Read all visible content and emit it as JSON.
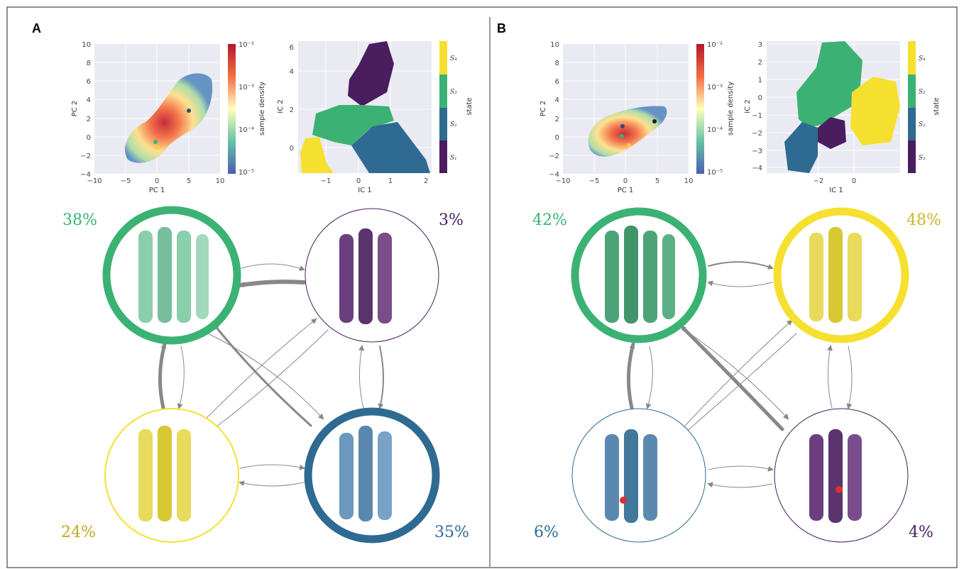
{
  "panels": [
    {
      "letter": "A",
      "pca": {
        "xlabel": "PC 1",
        "ylabel": "PC 2",
        "xticks": [
          "−10",
          "−5",
          "0",
          "5",
          "10"
        ],
        "yticks": [
          "−4",
          "−2",
          "0",
          "2",
          "4",
          "6",
          "8",
          "10"
        ],
        "colorbar_label": "sample density",
        "colorbar_ticks": [
          "10⁻²",
          "10⁻³",
          "10⁻⁴",
          "10⁻⁵"
        ]
      },
      "ica": {
        "xlabel": "IC 1",
        "ylabel": "IC 2",
        "xticks": [
          "−1",
          "0",
          "1",
          "2"
        ],
        "yticks": [
          "0",
          "2",
          "4",
          "6"
        ],
        "colorbar_label": "state",
        "state_labels": [
          "S₄",
          "S₃",
          "S₂",
          "S₁"
        ]
      },
      "states": [
        {
          "pct": "38%",
          "color": "#3bb273"
        },
        {
          "pct": "3%",
          "color": "#4a1d5e"
        },
        {
          "pct": "24%",
          "color": "#d4c31e"
        },
        {
          "pct": "35%",
          "color": "#2e6a92"
        }
      ]
    },
    {
      "letter": "B",
      "pca": {
        "xlabel": "PC 1",
        "ylabel": "PC 2",
        "xticks": [
          "−10",
          "−5",
          "0",
          "5",
          "10"
        ],
        "yticks": [
          "−4",
          "−2",
          "0",
          "2",
          "4",
          "6",
          "8",
          "10"
        ],
        "colorbar_label": "sample density",
        "colorbar_ticks": [
          "10⁻²",
          "10⁻³",
          "10⁻⁴",
          "10⁻⁵"
        ]
      },
      "ica": {
        "xlabel": "IC 1",
        "ylabel": "IC 2",
        "xticks": [
          "−2",
          "0"
        ],
        "yticks": [
          "−4",
          "−3",
          "−2",
          "−1",
          "0",
          "1",
          "2",
          "3"
        ],
        "colorbar_label": "state",
        "state_labels": [
          "S₄",
          "S₃",
          "S₂",
          "S₁"
        ]
      },
      "states": [
        {
          "pct": "42%",
          "color": "#3bb273"
        },
        {
          "pct": "48%",
          "color": "#c9b52a"
        },
        {
          "pct": "6%",
          "color": "#2e6a92"
        },
        {
          "pct": "4%",
          "color": "#4a1d5e"
        }
      ]
    }
  ]
}
